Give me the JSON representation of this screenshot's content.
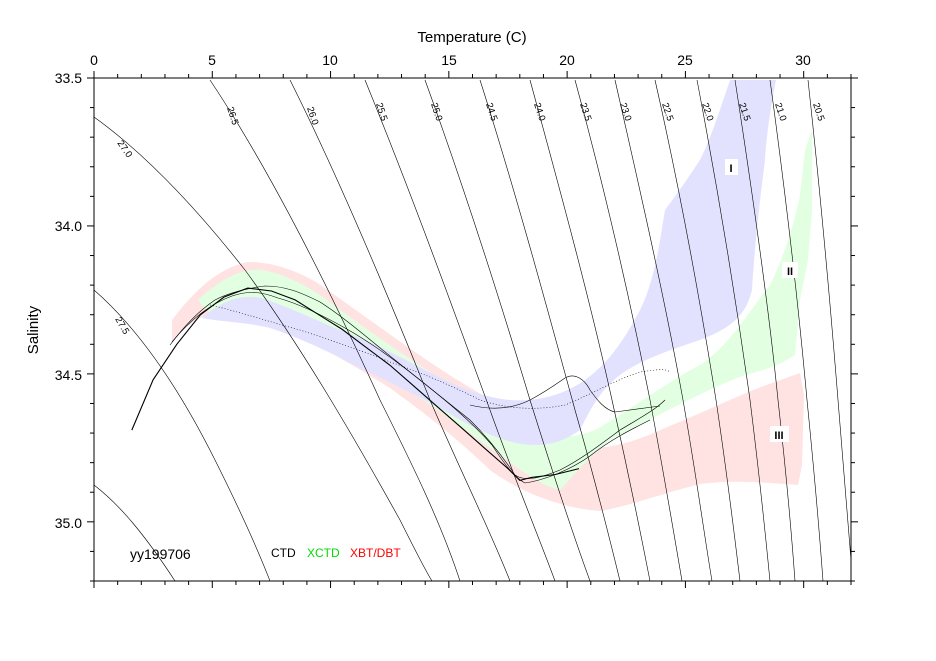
{
  "chart_data": {
    "type": "scatter",
    "xlabel": "Temperature (C)",
    "ylabel": "Salinity",
    "xlim": [
      0,
      32
    ],
    "ylim": [
      35.2,
      33.5
    ],
    "x_axis_position": "top",
    "y_axis_inverted": true,
    "x_ticks": [
      "0",
      "5",
      "10",
      "15",
      "20",
      "25",
      "30"
    ],
    "y_ticks": [
      "33.5",
      "34.0",
      "34.5",
      "35.0"
    ],
    "grid": false,
    "cruise_label": "yy199706",
    "legend": [
      {
        "label": "CTD",
        "color": "#000000"
      },
      {
        "label": "XCTD",
        "color": "#00dd00"
      },
      {
        "label": "XBT/DBT",
        "color": "#ff0000"
      }
    ],
    "density_contours": [
      "27.5",
      "27.0",
      "26.5",
      "26.0",
      "25.5",
      "25.0",
      "24.5",
      "24.0",
      "23.5",
      "23.0",
      "22.5",
      "22.0",
      "21.5",
      "21.0",
      "20.5"
    ],
    "regions": [
      {
        "label": "I",
        "color": "#e0e0ff"
      },
      {
        "label": "II",
        "color": "#e0ffe0"
      },
      {
        "label": "III",
        "color": "#ffe0e0"
      }
    ],
    "series": [
      {
        "name": "CTD",
        "x": [
          1.6,
          2.5,
          3.5,
          4.5,
          5.5,
          6.5,
          7.5,
          8.5,
          9.5,
          10.5,
          11.5,
          12.5,
          13.5,
          14.5,
          15.5,
          16.5,
          17.5,
          18.0,
          18.5,
          19.5,
          20.5
        ],
        "y": [
          34.69,
          34.52,
          34.4,
          34.3,
          34.24,
          34.21,
          34.22,
          34.25,
          34.3,
          34.35,
          34.41,
          34.47,
          34.54,
          34.61,
          34.68,
          34.75,
          34.82,
          34.86,
          34.85,
          34.84,
          34.82
        ]
      }
    ]
  }
}
